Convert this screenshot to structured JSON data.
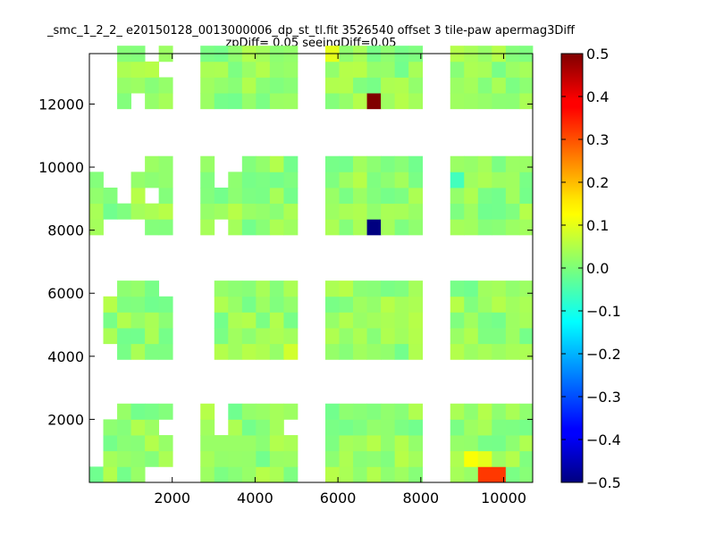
{
  "chart_data": {
    "type": "heatmap",
    "title": "_smc_1_2_2_ e20150128_0013000006_dp_st_tl.fit 3526540 offset 3 tile-paw apermag3Diff",
    "subtitle": "zpDiff= 0.05 seeingDiff=0.05",
    "xlabel": "",
    "ylabel": "",
    "xlim": [
      0,
      10700
    ],
    "ylim": [
      0,
      13600
    ],
    "x_ticks": [
      "2000",
      "4000",
      "6000",
      "8000",
      "10000"
    ],
    "y_ticks": [
      "2000",
      "4000",
      "6000",
      "8000",
      "10000",
      "12000"
    ],
    "colorbar": {
      "colormap": "jet",
      "range": [
        -0.5,
        0.5
      ],
      "ticks": [
        "0.5",
        "0.4",
        "0.3",
        "0.2",
        "0.1",
        "0.0",
        "−0.1",
        "−0.2",
        "−0.3",
        "−0.4",
        "−0.5"
      ]
    },
    "cell_size": [
      335,
      500
    ],
    "cell_columns_x": [
      0,
      335,
      670,
      1005,
      1340,
      1675,
      2680,
      3015,
      3350,
      3685,
      4020,
      4355,
      4690,
      5695,
      6030,
      6365,
      6700,
      7035,
      7370,
      7705,
      8710,
      9045,
      9380,
      9715,
      10050,
      10385
    ],
    "cell_rows_y": [
      0,
      500,
      1000,
      1500,
      2000,
      3900,
      4400,
      4900,
      5400,
      5900,
      7850,
      8350,
      8850,
      9350,
      9850,
      11850,
      12350,
      12850,
      13350
    ],
    "column_rows": [
      [
        0,
        10,
        11,
        12,
        13
      ],
      [
        0,
        1,
        2,
        3,
        6,
        7,
        8,
        11,
        12
      ],
      [
        0,
        1,
        2,
        3,
        4,
        5,
        6,
        7,
        8,
        9,
        11,
        15,
        16,
        17,
        18
      ],
      [
        0,
        1,
        2,
        3,
        4,
        5,
        6,
        7,
        8,
        9,
        11,
        12,
        13,
        16,
        17,
        18
      ],
      [
        1,
        2,
        3,
        4,
        5,
        6,
        7,
        8,
        9,
        10,
        11,
        13,
        14,
        15,
        16,
        17
      ],
      [
        1,
        2,
        4,
        5,
        6,
        7,
        8,
        10,
        11,
        12,
        13,
        14,
        15,
        16,
        18
      ],
      [
        0,
        1,
        2,
        3,
        4,
        10,
        11,
        12,
        13,
        14,
        15,
        16,
        17,
        18
      ],
      [
        0,
        1,
        2,
        5,
        6,
        7,
        8,
        9,
        11,
        12,
        15,
        16,
        17,
        18
      ],
      [
        0,
        1,
        2,
        3,
        4,
        5,
        6,
        7,
        8,
        9,
        10,
        11,
        12,
        13,
        15,
        16,
        17,
        18
      ],
      [
        0,
        1,
        2,
        3,
        4,
        5,
        6,
        7,
        8,
        9,
        10,
        11,
        12,
        13,
        14,
        15,
        16,
        17,
        18
      ],
      [
        0,
        1,
        2,
        3,
        4,
        5,
        6,
        7,
        8,
        9,
        10,
        11,
        12,
        13,
        14,
        15,
        16,
        17,
        18
      ],
      [
        0,
        1,
        2,
        3,
        4,
        5,
        6,
        7,
        8,
        9,
        10,
        11,
        12,
        13,
        14,
        15,
        16,
        17,
        18
      ],
      [
        0,
        1,
        2,
        4,
        5,
        6,
        7,
        8,
        9,
        10,
        11,
        12,
        13,
        14,
        15,
        16,
        17,
        18
      ],
      [
        0,
        1,
        2,
        3,
        4,
        5,
        6,
        7,
        8,
        9,
        10,
        11,
        12,
        13,
        14,
        15,
        16,
        17,
        18
      ],
      [
        0,
        1,
        2,
        3,
        4,
        5,
        6,
        7,
        8,
        9,
        10,
        11,
        12,
        13,
        14,
        15,
        16,
        17,
        18
      ],
      [
        0,
        1,
        2,
        3,
        4,
        5,
        6,
        7,
        8,
        9,
        10,
        11,
        12,
        13,
        14,
        15,
        16,
        17,
        18
      ],
      [
        0,
        1,
        2,
        3,
        4,
        5,
        6,
        7,
        8,
        9,
        10,
        11,
        12,
        13,
        14,
        15,
        16,
        17,
        18
      ],
      [
        0,
        1,
        2,
        3,
        4,
        5,
        6,
        7,
        8,
        9,
        10,
        11,
        12,
        13,
        14,
        15,
        16,
        17,
        18
      ],
      [
        0,
        1,
        2,
        3,
        4,
        5,
        6,
        7,
        8,
        9,
        10,
        11,
        12,
        13,
        14,
        15,
        16,
        17,
        18
      ],
      [
        0,
        1,
        2,
        3,
        4,
        5,
        6,
        7,
        8,
        9,
        10,
        11,
        12,
        13,
        14,
        15,
        16,
        17,
        18
      ],
      [
        0,
        1,
        2,
        3,
        4,
        5,
        6,
        7,
        8,
        9,
        10,
        11,
        12,
        13,
        14,
        15,
        16,
        17,
        18
      ],
      [
        0,
        1,
        2,
        3,
        4,
        5,
        6,
        7,
        8,
        9,
        10,
        11,
        12,
        13,
        14,
        15,
        16,
        17,
        18
      ],
      [
        0,
        1,
        2,
        3,
        4,
        5,
        6,
        7,
        8,
        9,
        10,
        11,
        12,
        13,
        14,
        15,
        16,
        17,
        18
      ],
      [
        0,
        1,
        2,
        3,
        4,
        5,
        6,
        7,
        8,
        9,
        10,
        11,
        12,
        13,
        14,
        15,
        16,
        17,
        18
      ],
      [
        0,
        1,
        2,
        3,
        4,
        5,
        6,
        7,
        8,
        9,
        10,
        11,
        12,
        13,
        14,
        15,
        16,
        17,
        18
      ],
      [
        0,
        1,
        2,
        3,
        4,
        5,
        6,
        7,
        8,
        9,
        10,
        11,
        12,
        13,
        14,
        15,
        16,
        17,
        18
      ]
    ],
    "baseline_value": 0.02,
    "special_cells": [
      {
        "x": 6700,
        "y": 11850,
        "value": 0.5
      },
      {
        "x": 6700,
        "y": 7850,
        "value": -0.5
      },
      {
        "x": 9380,
        "y": 0,
        "value": 0.32
      },
      {
        "x": 9715,
        "y": 0,
        "value": 0.32
      },
      {
        "x": 9045,
        "y": 500,
        "value": 0.12
      },
      {
        "x": 9380,
        "y": 500,
        "value": 0.1
      },
      {
        "x": 8710,
        "y": 9350,
        "value": -0.06
      },
      {
        "x": 4690,
        "y": 3900,
        "value": 0.08
      },
      {
        "x": 5695,
        "y": 13350,
        "value": 0.1
      }
    ]
  }
}
